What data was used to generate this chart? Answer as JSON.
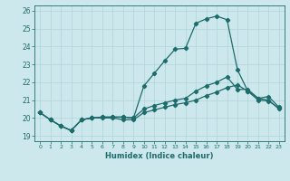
{
  "title": "",
  "xlabel": "Humidex (Indice chaleur)",
  "xlim": [
    -0.5,
    23.5
  ],
  "ylim": [
    18.7,
    26.3
  ],
  "yticks": [
    19,
    20,
    21,
    22,
    23,
    24,
    25,
    26
  ],
  "xticks": [
    0,
    1,
    2,
    3,
    4,
    5,
    6,
    7,
    8,
    9,
    10,
    11,
    12,
    13,
    14,
    15,
    16,
    17,
    18,
    19,
    20,
    21,
    22,
    23
  ],
  "bg_color": "#cce8ec",
  "line_color": "#1e6b6b",
  "grid_color": "#b0d4d8",
  "line_max_x": [
    0,
    1,
    2,
    3,
    4,
    5,
    6,
    7,
    8,
    9,
    10,
    11,
    12,
    13,
    14,
    15,
    16,
    17,
    18,
    19,
    20,
    21,
    22,
    23
  ],
  "line_max_y": [
    20.3,
    19.9,
    19.55,
    19.3,
    19.9,
    20.0,
    20.05,
    20.05,
    20.05,
    20.0,
    21.8,
    22.5,
    23.2,
    23.85,
    23.9,
    25.3,
    25.55,
    25.7,
    25.5,
    22.7,
    21.5,
    21.1,
    21.2,
    20.6
  ],
  "line_mid_x": [
    0,
    1,
    2,
    3,
    4,
    5,
    6,
    7,
    8,
    9,
    10,
    11,
    12,
    13,
    14,
    15,
    16,
    17,
    18,
    19,
    20,
    21,
    22,
    23
  ],
  "line_mid_y": [
    20.3,
    19.9,
    19.55,
    19.3,
    19.9,
    20.0,
    20.05,
    20.05,
    20.05,
    20.0,
    20.5,
    20.7,
    20.85,
    21.0,
    21.1,
    21.5,
    21.8,
    22.0,
    22.3,
    21.6,
    21.6,
    21.1,
    21.0,
    20.5
  ],
  "line_min_x": [
    0,
    1,
    2,
    3,
    4,
    5,
    6,
    7,
    8,
    9,
    10,
    11,
    12,
    13,
    14,
    15,
    16,
    17,
    18,
    19,
    20,
    21,
    22,
    23
  ],
  "line_min_y": [
    20.3,
    19.9,
    19.55,
    19.3,
    19.9,
    20.0,
    20.0,
    20.0,
    19.9,
    19.9,
    20.3,
    20.45,
    20.6,
    20.75,
    20.85,
    21.0,
    21.25,
    21.45,
    21.7,
    21.85,
    21.5,
    21.0,
    20.95,
    20.55
  ]
}
